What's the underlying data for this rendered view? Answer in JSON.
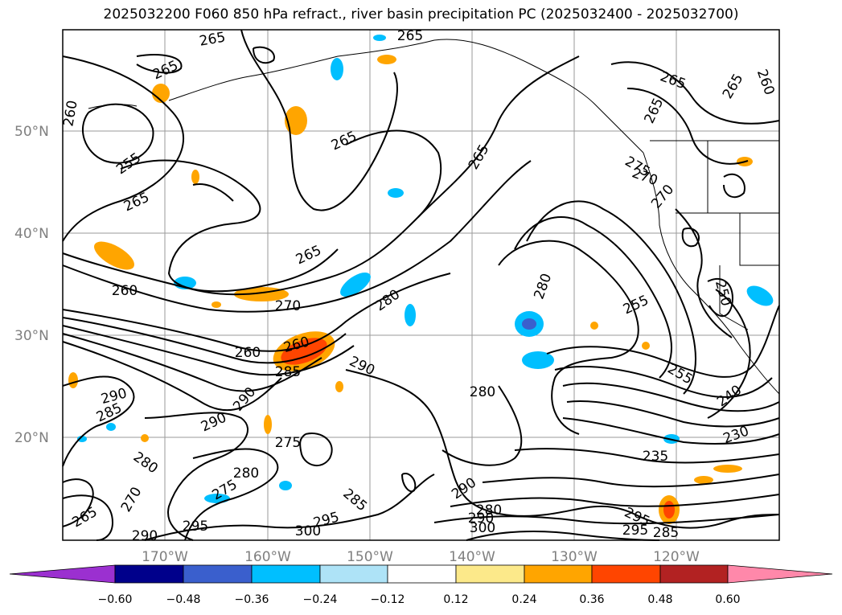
{
  "title": "2025032200 F060 850 hPa refract., river basin precipitation PC (2025032400 - 2025032700)",
  "lat_labels": [
    "50°N",
    "40°N",
    "30°N",
    "20°N"
  ],
  "lon_labels": [
    "170°W",
    "160°W",
    "150°W",
    "140°W",
    "130°W",
    "120°W"
  ],
  "contour_labels": [
    "265",
    "265",
    "265",
    "260",
    "255",
    "265",
    "265",
    "265",
    "265",
    "260",
    "265",
    "265",
    "270",
    "275",
    "270",
    "260",
    "270",
    "280",
    "260",
    "260",
    "285",
    "290",
    "285",
    "290",
    "290",
    "275",
    "280",
    "275",
    "280",
    "290",
    "280",
    "280",
    "270",
    "265",
    "265",
    "290",
    "295",
    "300",
    "295",
    "285",
    "290",
    "300",
    "280",
    "255",
    "250",
    "255",
    "240",
    "230",
    "235",
    "295",
    "290",
    "295",
    "285"
  ],
  "colorbar": {
    "ticks": [
      "−0.60",
      "−0.48",
      "−0.36",
      "−0.24",
      "−0.12",
      "0.12",
      "0.24",
      "0.36",
      "0.48",
      "0.60"
    ],
    "colors": {
      "under": "#9b30d0",
      "bins": [
        "#00008b",
        "#3a5fcd",
        "#00bfff",
        "#aee3f7",
        "#ffffff",
        "#fce98a",
        "#ffa500",
        "#ff4500",
        "#b22222"
      ],
      "over": "#ff88aa"
    }
  }
}
